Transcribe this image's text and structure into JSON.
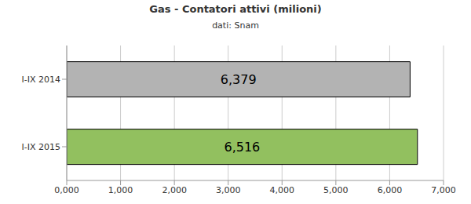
{
  "chart_data": {
    "type": "bar",
    "title": "Gas - Contatori attivi (milioni)",
    "subtitle": "dati: Snam",
    "orientation": "horizontal",
    "categories": [
      "I-IX 2014",
      "I-IX 2015"
    ],
    "values": [
      6.379,
      6.516
    ],
    "value_labels": [
      "6,379",
      "6,516"
    ],
    "colors": [
      "#b3b3b3",
      "#92c05f"
    ],
    "xlim": [
      0,
      7
    ],
    "xticks": [
      {
        "value": 0,
        "label": "0,000"
      },
      {
        "value": 1,
        "label": "1,000"
      },
      {
        "value": 2,
        "label": "2,000"
      },
      {
        "value": 3,
        "label": "3,000"
      },
      {
        "value": 4,
        "label": "4,000"
      },
      {
        "value": 5,
        "label": "5,000"
      },
      {
        "value": 6,
        "label": "6,000"
      },
      {
        "value": 7,
        "label": "7,000"
      }
    ],
    "grid": true,
    "data_labels": true
  }
}
